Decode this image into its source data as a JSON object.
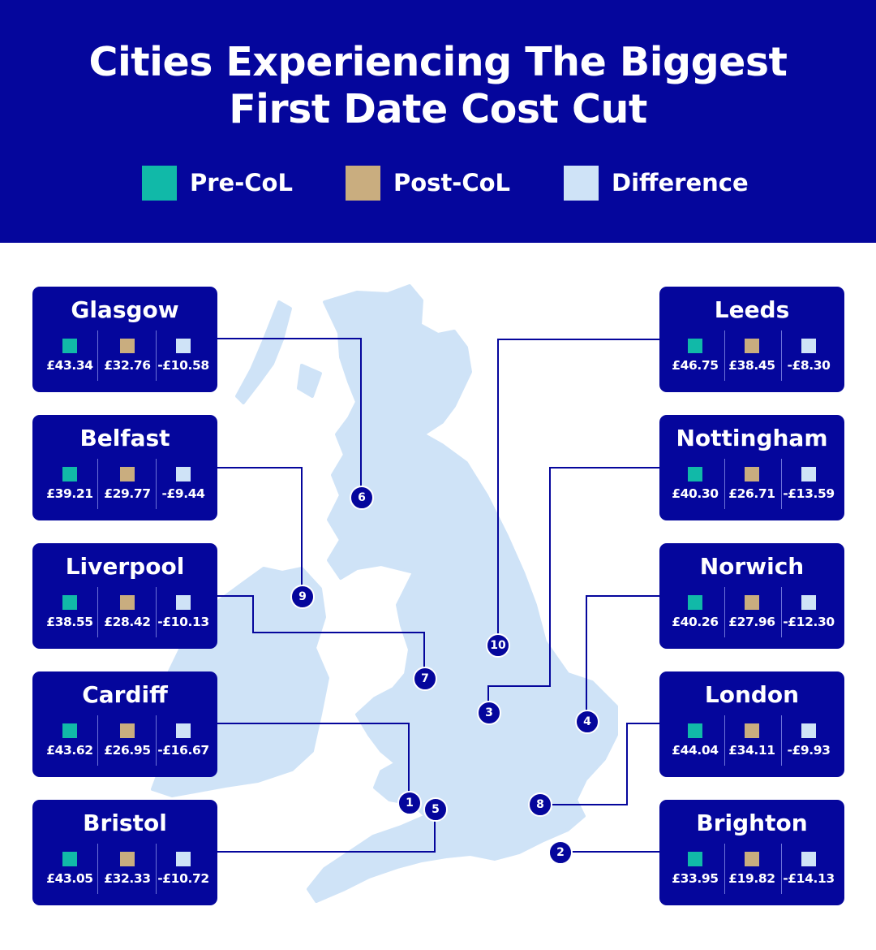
{
  "title_line1": "Cities Experiencing The Biggest",
  "title_line2": "First Date Cost Cut",
  "legend": [
    {
      "label": "Pre-CoL",
      "color": "#11b9a8"
    },
    {
      "label": "Post-CoL",
      "color": "#c9ad7f"
    },
    {
      "label": "Difference",
      "color": "#cfe3f7"
    }
  ],
  "colors": {
    "navy": "#05069c",
    "map": "#cfe3f7",
    "pre": "#11b9a8",
    "post": "#c9ad7f",
    "diff": "#cfe3f7"
  },
  "cities": [
    {
      "rank": "1",
      "name": "Cardiff",
      "pre": "£43.62",
      "post": "£26.95",
      "diff": "-£16.67"
    },
    {
      "rank": "2",
      "name": "Brighton",
      "pre": "£33.95",
      "post": "£19.82",
      "diff": "-£14.13"
    },
    {
      "rank": "3",
      "name": "Nottingham",
      "pre": "£40.30",
      "post": "£26.71",
      "diff": "-£13.59"
    },
    {
      "rank": "4",
      "name": "Norwich",
      "pre": "£40.26",
      "post": "£27.96",
      "diff": "-£12.30"
    },
    {
      "rank": "5",
      "name": "Bristol",
      "pre": "£43.05",
      "post": "£32.33",
      "diff": "-£10.72"
    },
    {
      "rank": "6",
      "name": "Glasgow",
      "pre": "£43.34",
      "post": "£32.76",
      "diff": "-£10.58"
    },
    {
      "rank": "7",
      "name": "Liverpool",
      "pre": "£38.55",
      "post": "£28.42",
      "diff": "-£10.13"
    },
    {
      "rank": "8",
      "name": "London",
      "pre": "£44.04",
      "post": "£34.11",
      "diff": "-£9.93"
    },
    {
      "rank": "9",
      "name": "Belfast",
      "pre": "£39.21",
      "post": "£29.77",
      "diff": "-£9.44"
    },
    {
      "rank": "10",
      "name": "Leeds",
      "pre": "£46.75",
      "post": "£38.45",
      "diff": "-£8.30"
    }
  ]
}
